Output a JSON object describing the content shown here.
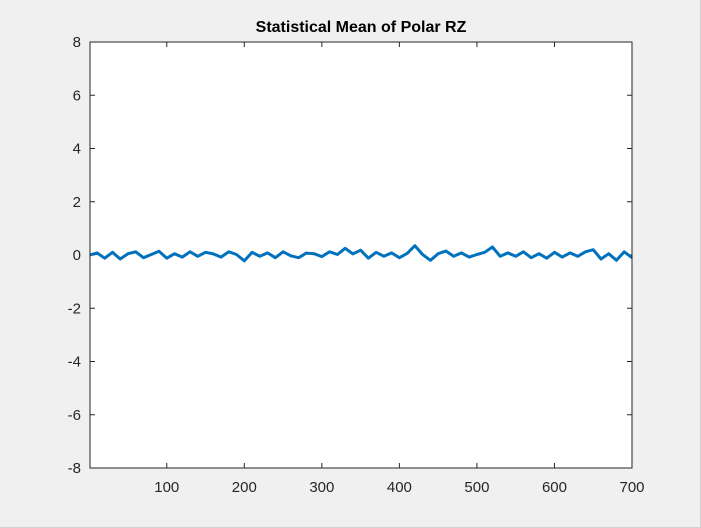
{
  "chart_data": {
    "type": "line",
    "title": "Statistical Mean of Polar RZ",
    "xlabel": "",
    "ylabel": "",
    "xlim": [
      1,
      700
    ],
    "ylim": [
      -8,
      8
    ],
    "xticks": [
      100,
      200,
      300,
      400,
      500,
      600,
      700
    ],
    "yticks": [
      -8,
      -6,
      -4,
      -2,
      0,
      2,
      4,
      6,
      8
    ],
    "grid": false,
    "legend": "none",
    "series": [
      {
        "color": "#0072bd",
        "x": [
          1,
          10,
          20,
          30,
          40,
          50,
          60,
          70,
          80,
          90,
          100,
          110,
          120,
          130,
          140,
          150,
          160,
          170,
          180,
          190,
          200,
          210,
          220,
          230,
          240,
          250,
          260,
          270,
          280,
          290,
          300,
          310,
          320,
          330,
          340,
          350,
          360,
          370,
          380,
          390,
          400,
          410,
          420,
          430,
          440,
          450,
          460,
          470,
          480,
          490,
          500,
          510,
          520,
          530,
          540,
          550,
          560,
          570,
          580,
          590,
          600,
          610,
          620,
          630,
          640,
          650,
          660,
          670,
          680,
          690,
          700
        ],
        "y": [
          0,
          0.08,
          -0.12,
          0.1,
          -0.15,
          0.05,
          0.12,
          -0.1,
          0.02,
          0.14,
          -0.12,
          0.05,
          -0.08,
          0.12,
          -0.05,
          0.1,
          0.04,
          -0.08,
          0.12,
          0.02,
          -0.22,
          0.1,
          -0.05,
          0.08,
          -0.1,
          0.12,
          -0.03,
          -0.1,
          0.07,
          0.05,
          -0.06,
          0.12,
          0.02,
          0.25,
          0.04,
          0.18,
          -0.12,
          0.1,
          -0.05,
          0.08,
          -0.1,
          0.06,
          0.35,
          0.02,
          -0.2,
          0.05,
          0.15,
          -0.05,
          0.08,
          -0.08,
          0.02,
          0.1,
          0.3,
          -0.05,
          0.08,
          -0.05,
          0.12,
          -0.1,
          0.05,
          -0.12,
          0.1,
          -0.08,
          0.08,
          -0.05,
          0.12,
          0.2,
          -0.15,
          0.05,
          -0.2,
          0.12,
          -0.1
        ]
      }
    ]
  }
}
